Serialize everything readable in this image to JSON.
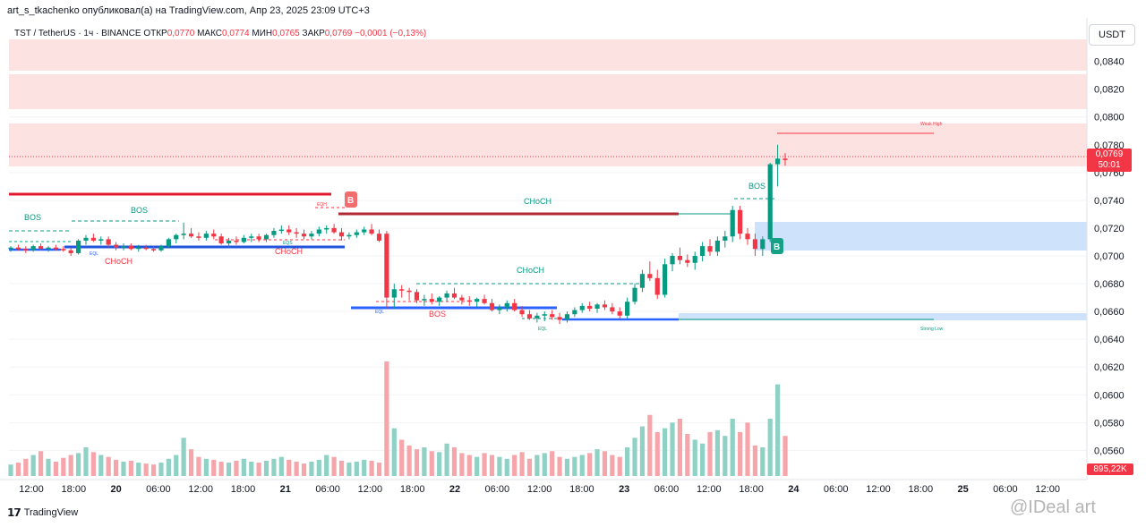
{
  "header": {
    "attribution": "art_s_tkachenko опубликовал(а) на TradingView.com, Апр 23, 2025 23:09 UTC+3",
    "symbol": "TST / TetherUS · 1ч · BINANCE",
    "open_label": "ОТКР",
    "open_value": "0,0770",
    "high_label": "МАКС",
    "high_value": "0,0774",
    "low_label": "МИН",
    "low_value": "0,0765",
    "close_label": "ЗАКР",
    "close_value": "0,0769",
    "change_value": "−0,0001 (−0,13%)"
  },
  "currency_button": "USDT",
  "price_axis": {
    "ticks": [
      "0,0840",
      "0,0820",
      "0,0800",
      "0,0780",
      "0,0760",
      "0,0740",
      "0,0720",
      "0,0700",
      "0,0680",
      "0,0660",
      "0,0640",
      "0,0620",
      "0,0600",
      "0,0580",
      "0,0560"
    ],
    "current_price": "0,0769",
    "countdown": "50:01",
    "volume_label": "895,22K"
  },
  "time_axis": {
    "labels": [
      "12:00",
      "18:00",
      "20",
      "06:00",
      "12:00",
      "18:00",
      "21",
      "06:00",
      "12:00",
      "18:00",
      "22",
      "06:00",
      "12:00",
      "18:00",
      "23",
      "06:00",
      "12:00",
      "18:00",
      "24",
      "06:00",
      "12:00",
      "18:00",
      "25",
      "06:00",
      "12:00"
    ]
  },
  "annotations": {
    "bos1": "BOS",
    "bos2": "BOS",
    "eqh": "EQH",
    "eql1": "EQL",
    "eqs": "EQS",
    "choch1": "CHoCH",
    "choch2": "CHoCH",
    "choch3": "CHoCH",
    "choch4": "CHoCH",
    "eql2": "EQL",
    "bos3": "BOS",
    "eql3": "EQL",
    "bos4": "BOS",
    "weak_high": "Weak High",
    "strong_low": "Strong Low",
    "b_marker": "B"
  },
  "colors": {
    "up": "#089981",
    "down": "#f23645",
    "supply_zone": "#fde2e2",
    "demand_zone": "#cfe2fc",
    "structure_blue": "#2962ff"
  },
  "footer": {
    "logo_text": "TradingView",
    "watermark": "@IDeal art"
  },
  "chart_data": {
    "type": "candlestick",
    "price_range": [
      0.0548,
      0.0852
    ],
    "candles": [
      [
        0.0705,
        0.0707,
        0.0703,
        0.0706
      ],
      [
        0.0706,
        0.0708,
        0.0704,
        0.0705
      ],
      [
        0.0705,
        0.0707,
        0.0702,
        0.0704
      ],
      [
        0.0704,
        0.0708,
        0.0703,
        0.0707
      ],
      [
        0.0707,
        0.0709,
        0.0704,
        0.0705
      ],
      [
        0.0705,
        0.0707,
        0.0703,
        0.0706
      ],
      [
        0.0706,
        0.0708,
        0.0704,
        0.0705
      ],
      [
        0.0705,
        0.0707,
        0.0703,
        0.0704
      ],
      [
        0.0704,
        0.0706,
        0.07,
        0.0702
      ],
      [
        0.0702,
        0.0712,
        0.0701,
        0.0711
      ],
      [
        0.0711,
        0.0715,
        0.0708,
        0.0713
      ],
      [
        0.0713,
        0.0716,
        0.071,
        0.0711
      ],
      [
        0.0711,
        0.0714,
        0.0708,
        0.0712
      ],
      [
        0.0712,
        0.0714,
        0.0706,
        0.0708
      ],
      [
        0.0708,
        0.071,
        0.0704,
        0.0706
      ],
      [
        0.0706,
        0.0709,
        0.0704,
        0.0707
      ],
      [
        0.0707,
        0.0709,
        0.0704,
        0.0705
      ],
      [
        0.0705,
        0.0708,
        0.0703,
        0.0706
      ],
      [
        0.0706,
        0.0708,
        0.0704,
        0.0705
      ],
      [
        0.0705,
        0.0707,
        0.0703,
        0.0704
      ],
      [
        0.0704,
        0.0708,
        0.0703,
        0.0707
      ],
      [
        0.0707,
        0.0713,
        0.0706,
        0.0712
      ],
      [
        0.0712,
        0.0716,
        0.0709,
        0.0715
      ],
      [
        0.0715,
        0.0724,
        0.0712,
        0.0716
      ],
      [
        0.0716,
        0.072,
        0.0713,
        0.0714
      ],
      [
        0.0714,
        0.0717,
        0.0711,
        0.0713
      ],
      [
        0.0713,
        0.0718,
        0.0711,
        0.0716
      ],
      [
        0.0716,
        0.0719,
        0.0712,
        0.0714
      ],
      [
        0.0714,
        0.0716,
        0.0708,
        0.0709
      ],
      [
        0.0709,
        0.0713,
        0.0706,
        0.0711
      ],
      [
        0.0711,
        0.0714,
        0.0708,
        0.071
      ],
      [
        0.071,
        0.0715,
        0.0709,
        0.0713
      ],
      [
        0.0713,
        0.0716,
        0.071,
        0.0714
      ],
      [
        0.0714,
        0.0716,
        0.071,
        0.0712
      ],
      [
        0.0712,
        0.0716,
        0.071,
        0.0715
      ],
      [
        0.0715,
        0.072,
        0.0713,
        0.0718
      ],
      [
        0.0718,
        0.0722,
        0.0716,
        0.0719
      ],
      [
        0.0719,
        0.0722,
        0.0715,
        0.0717
      ],
      [
        0.0717,
        0.072,
        0.0713,
        0.0716
      ],
      [
        0.0716,
        0.0719,
        0.0712,
        0.0714
      ],
      [
        0.0714,
        0.0718,
        0.0712,
        0.0716
      ],
      [
        0.0716,
        0.0721,
        0.0714,
        0.0719
      ],
      [
        0.0719,
        0.0722,
        0.0716,
        0.072
      ],
      [
        0.072,
        0.0723,
        0.0716,
        0.0717
      ],
      [
        0.0717,
        0.072,
        0.0711,
        0.0714
      ],
      [
        0.0714,
        0.0717,
        0.0712,
        0.0715
      ],
      [
        0.0715,
        0.0719,
        0.0713,
        0.0717
      ],
      [
        0.0717,
        0.0721,
        0.0715,
        0.0719
      ],
      [
        0.0719,
        0.0723,
        0.0715,
        0.0716
      ],
      [
        0.0716,
        0.0719,
        0.071,
        0.0711
      ],
      [
        0.0716,
        0.0718,
        0.0662,
        0.067
      ],
      [
        0.067,
        0.068,
        0.0662,
        0.0676
      ],
      [
        0.0676,
        0.0679,
        0.067,
        0.0675
      ],
      [
        0.0675,
        0.0677,
        0.0668,
        0.0674
      ],
      [
        0.0674,
        0.0676,
        0.0666,
        0.0668
      ],
      [
        0.0668,
        0.0672,
        0.0664,
        0.0669
      ],
      [
        0.0669,
        0.0673,
        0.0665,
        0.0667
      ],
      [
        0.0667,
        0.0671,
        0.0664,
        0.067
      ],
      [
        0.067,
        0.0675,
        0.0667,
        0.0673
      ],
      [
        0.0673,
        0.0677,
        0.0669,
        0.067
      ],
      [
        0.067,
        0.0672,
        0.0665,
        0.0668
      ],
      [
        0.0668,
        0.0671,
        0.0664,
        0.0667
      ],
      [
        0.0667,
        0.067,
        0.0663,
        0.0669
      ],
      [
        0.0669,
        0.0672,
        0.0665,
        0.0666
      ],
      [
        0.0666,
        0.0669,
        0.066,
        0.0661
      ],
      [
        0.0661,
        0.0665,
        0.0658,
        0.0663
      ],
      [
        0.0663,
        0.0668,
        0.066,
        0.0666
      ],
      [
        0.0666,
        0.0669,
        0.066,
        0.0661
      ],
      [
        0.0661,
        0.0664,
        0.0656,
        0.0658
      ],
      [
        0.0658,
        0.0661,
        0.0654,
        0.0655
      ],
      [
        0.0655,
        0.0659,
        0.0652,
        0.0657
      ],
      [
        0.0657,
        0.066,
        0.0653,
        0.0658
      ],
      [
        0.0658,
        0.0661,
        0.0654,
        0.0656
      ],
      [
        0.0656,
        0.0659,
        0.0651,
        0.0654
      ],
      [
        0.0654,
        0.066,
        0.0652,
        0.0658
      ],
      [
        0.0658,
        0.0663,
        0.0656,
        0.0661
      ],
      [
        0.0661,
        0.0666,
        0.0659,
        0.0664
      ],
      [
        0.0664,
        0.0667,
        0.066,
        0.0662
      ],
      [
        0.0662,
        0.0666,
        0.0659,
        0.0665
      ],
      [
        0.0665,
        0.0668,
        0.0661,
        0.0663
      ],
      [
        0.0663,
        0.0666,
        0.0658,
        0.066
      ],
      [
        0.066,
        0.0663,
        0.0655,
        0.0657
      ],
      [
        0.0657,
        0.067,
        0.0655,
        0.0667
      ],
      [
        0.0667,
        0.068,
        0.0665,
        0.0677
      ],
      [
        0.0677,
        0.069,
        0.0674,
        0.0687
      ],
      [
        0.0687,
        0.0696,
        0.0682,
        0.0684
      ],
      [
        0.0684,
        0.069,
        0.0669,
        0.0672
      ],
      [
        0.0672,
        0.0698,
        0.067,
        0.0694
      ],
      [
        0.0694,
        0.0702,
        0.0689,
        0.07
      ],
      [
        0.07,
        0.0706,
        0.0694,
        0.0697
      ],
      [
        0.0697,
        0.0701,
        0.0692,
        0.0695
      ],
      [
        0.0695,
        0.0703,
        0.069,
        0.07
      ],
      [
        0.07,
        0.071,
        0.0696,
        0.0707
      ],
      [
        0.0707,
        0.0712,
        0.07,
        0.0703
      ],
      [
        0.0703,
        0.0714,
        0.07,
        0.0711
      ],
      [
        0.0711,
        0.0718,
        0.0706,
        0.0714
      ],
      [
        0.0714,
        0.0736,
        0.071,
        0.0733
      ],
      [
        0.0733,
        0.0736,
        0.0712,
        0.0716
      ],
      [
        0.0716,
        0.072,
        0.0708,
        0.0712
      ],
      [
        0.0712,
        0.0716,
        0.07,
        0.0705
      ],
      [
        0.0705,
        0.0714,
        0.07,
        0.0712
      ],
      [
        0.0712,
        0.0767,
        0.071,
        0.0766
      ],
      [
        0.0766,
        0.078,
        0.075,
        0.077
      ],
      [
        0.077,
        0.0774,
        0.0765,
        0.0769
      ]
    ],
    "volumes": [
      12,
      14,
      18,
      22,
      26,
      18,
      15,
      19,
      22,
      24,
      30,
      25,
      22,
      20,
      17,
      15,
      16,
      14,
      13,
      12,
      14,
      18,
      22,
      40,
      28,
      20,
      18,
      17,
      15,
      14,
      16,
      18,
      15,
      14,
      16,
      18,
      20,
      17,
      15,
      13,
      15,
      17,
      22,
      20,
      16,
      14,
      15,
      17,
      16,
      14,
      120,
      50,
      38,
      32,
      28,
      30,
      26,
      25,
      34,
      30,
      24,
      22,
      20,
      24,
      22,
      20,
      18,
      22,
      25,
      18,
      22,
      24,
      26,
      20,
      18,
      20,
      22,
      24,
      28,
      26,
      22,
      20,
      30,
      40,
      52,
      64,
      46,
      50,
      56,
      60,
      44,
      38,
      34,
      46,
      48,
      42,
      60,
      46,
      56,
      32,
      30,
      60,
      96,
      42
    ]
  }
}
